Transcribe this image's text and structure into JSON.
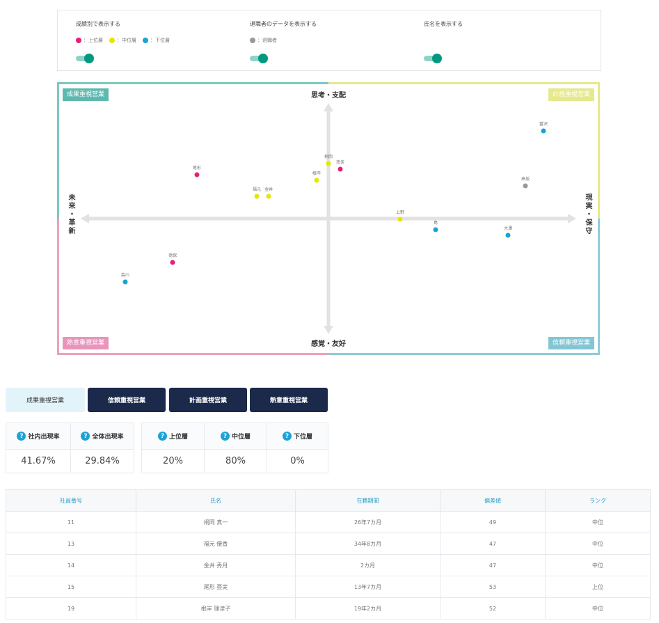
{
  "controls": {
    "by_rank": {
      "title": "成績別で表示する",
      "legend": [
        {
          "label": "：上位層",
          "color": "#e91e7a"
        },
        {
          "label": "：中位層",
          "color": "#e6e600"
        },
        {
          "label": "：下位層",
          "color": "#1aa3d6"
        }
      ],
      "on": true
    },
    "retired": {
      "title": "退職者のデータを表示する",
      "legend": [
        {
          "label": "：退職者",
          "color": "#999999"
        }
      ],
      "on": true
    },
    "names": {
      "title": "氏名を表示する",
      "on": true
    }
  },
  "chart_data": {
    "type": "scatter",
    "quadrants": {
      "top_left": "成果重視営業",
      "top_right": "計画重視営業",
      "bottom_left": "熱意重視営業",
      "bottom_right": "信頼重視営業"
    },
    "axes": {
      "top": "思考・支配",
      "bottom": "感覚・友好",
      "left": "未来・革新",
      "right": "現実・保守"
    },
    "xlim": [
      -100,
      100
    ],
    "ylim": [
      -100,
      100
    ],
    "grid": false,
    "colors": {
      "上位": "#e91e7a",
      "中位": "#e6e600",
      "下位": "#1aa3d6",
      "退職": "#999999"
    },
    "points": [
      {
        "name": "尾形",
        "x": -48.5,
        "y": 32,
        "group": "上位"
      },
      {
        "name": "福元",
        "x": -26.4,
        "y": 16.3,
        "group": "中位"
      },
      {
        "name": "金井",
        "x": -22,
        "y": 16.3,
        "group": "中位"
      },
      {
        "name": "桐岡",
        "x": 0,
        "y": 40.3,
        "group": "中位"
      },
      {
        "name": "根岸",
        "x": -4.4,
        "y": 28,
        "group": "中位"
      },
      {
        "name": "南条",
        "x": 4.4,
        "y": 36.2,
        "group": "上位"
      },
      {
        "name": "上野",
        "x": 26.4,
        "y": -0.5,
        "group": "中位"
      },
      {
        "name": "島",
        "x": 39.5,
        "y": -8.2,
        "group": "下位"
      },
      {
        "name": "大澤",
        "x": 66.2,
        "y": -12.2,
        "group": "下位"
      },
      {
        "name": "富沢",
        "x": 79.2,
        "y": 64.3,
        "group": "下位"
      },
      {
        "name": "高坂",
        "x": 72.6,
        "y": 24,
        "group": "退職"
      },
      {
        "name": "徳保",
        "x": -57.4,
        "y": -32.1,
        "group": "上位"
      },
      {
        "name": "森川",
        "x": -74.9,
        "y": -46.4,
        "group": "下位"
      }
    ]
  },
  "tabs": [
    "成果重視営業",
    "信頼重視営業",
    "計画重視営業",
    "熱意重視営業"
  ],
  "active_tab": 0,
  "stats": {
    "appearance": [
      {
        "label": "社内出現率",
        "value": "41.67%"
      },
      {
        "label": "全体出現率",
        "value": "29.84%"
      }
    ],
    "ranks": [
      {
        "label": "上位層",
        "value": "20%"
      },
      {
        "label": "中位層",
        "value": "80%"
      },
      {
        "label": "下位層",
        "value": "0%"
      }
    ]
  },
  "table": {
    "headers": [
      "社員番号",
      "氏名",
      "在籍期間",
      "偏差値",
      "ランク"
    ],
    "rows": [
      [
        "11",
        "桐岡 真一",
        "26年7カ月",
        "49",
        "中位"
      ],
      [
        "13",
        "福元 優香",
        "34年8カ月",
        "47",
        "中位"
      ],
      [
        "14",
        "金井 秀月",
        "2カ月",
        "47",
        "中位"
      ],
      [
        "15",
        "尾形 亜実",
        "13年7カ月",
        "53",
        "上位"
      ],
      [
        "19",
        "根岸 理津子",
        "19年2カ月",
        "52",
        "中位"
      ]
    ]
  }
}
